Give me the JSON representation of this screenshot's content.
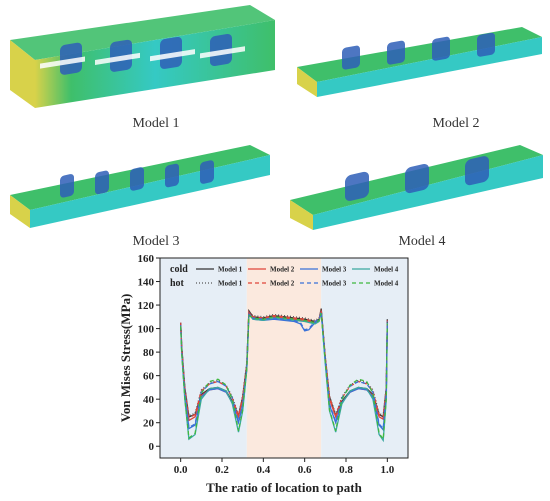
{
  "models": [
    {
      "label": "Model 1"
    },
    {
      "label": "Model 2"
    },
    {
      "label": "Model 3"
    },
    {
      "label": "Model 4"
    }
  ],
  "colors": {
    "region_outer": "#e6eef6",
    "region_middle": "#fbe9de",
    "mesh_green": "#3fbf6a",
    "mesh_blue": "#2f5fb8",
    "mesh_yellow": "#d8d24a",
    "mesh_cyan": "#35c9c4"
  },
  "chart_data": {
    "type": "line",
    "title": "",
    "xlabel": "The ratio of location to path",
    "ylabel": "Von Mises Stress(MPa)",
    "xlim": [
      -0.1,
      1.1
    ],
    "ylim": [
      -10,
      160
    ],
    "xticks": [
      "0.0",
      "0.2",
      "0.4",
      "0.6",
      "0.8",
      "1.0"
    ],
    "yticks": [
      "0",
      "20",
      "40",
      "60",
      "80",
      "100",
      "120",
      "140",
      "160"
    ],
    "regions": [
      {
        "x0": -0.1,
        "x1": 0.32,
        "color": "#e6eef6"
      },
      {
        "x0": 0.32,
        "x1": 0.68,
        "color": "#fbe9de"
      },
      {
        "x0": 0.68,
        "x1": 1.1,
        "color": "#e6eef6"
      }
    ],
    "legend_groups": [
      "cold",
      "hot"
    ],
    "series": [
      {
        "name": "Model 1",
        "group": "cold",
        "color": "#333333",
        "dash": "",
        "x": [
          0.0,
          0.005,
          0.02,
          0.04,
          0.07,
          0.1,
          0.14,
          0.18,
          0.22,
          0.25,
          0.28,
          0.3,
          0.32,
          0.33,
          0.35,
          0.4,
          0.45,
          0.5,
          0.55,
          0.6,
          0.65,
          0.67,
          0.68,
          0.7,
          0.72,
          0.75,
          0.78,
          0.82,
          0.86,
          0.9,
          0.93,
          0.96,
          0.98,
          0.995,
          1.0
        ],
        "y": [
          105,
          85,
          50,
          25,
          27,
          44,
          49,
          50,
          47,
          38,
          26,
          42,
          70,
          115,
          110,
          109,
          111,
          110,
          109,
          108,
          106,
          108,
          117,
          75,
          42,
          26,
          38,
          47,
          50,
          49,
          44,
          27,
          25,
          50,
          108
        ]
      },
      {
        "name": "Model 2",
        "group": "cold",
        "color": "#e0463a",
        "dash": "",
        "x": [
          0.0,
          0.005,
          0.02,
          0.04,
          0.07,
          0.1,
          0.14,
          0.18,
          0.22,
          0.25,
          0.28,
          0.3,
          0.32,
          0.33,
          0.35,
          0.4,
          0.45,
          0.5,
          0.55,
          0.6,
          0.65,
          0.67,
          0.68,
          0.7,
          0.72,
          0.75,
          0.78,
          0.82,
          0.86,
          0.9,
          0.93,
          0.96,
          0.98,
          0.995,
          1.0
        ],
        "y": [
          105,
          84,
          48,
          22,
          25,
          43,
          48,
          49,
          46,
          37,
          25,
          40,
          68,
          114,
          109,
          108,
          110,
          109,
          108,
          107,
          105,
          107,
          116,
          74,
          40,
          25,
          37,
          46,
          49,
          48,
          43,
          25,
          23,
          48,
          107
        ]
      },
      {
        "name": "Model 3",
        "group": "cold",
        "color": "#3a72d8",
        "dash": "",
        "x": [
          0.0,
          0.005,
          0.02,
          0.04,
          0.07,
          0.1,
          0.14,
          0.18,
          0.22,
          0.25,
          0.28,
          0.3,
          0.32,
          0.33,
          0.35,
          0.4,
          0.45,
          0.5,
          0.55,
          0.58,
          0.6,
          0.62,
          0.65,
          0.67,
          0.68,
          0.7,
          0.72,
          0.75,
          0.78,
          0.82,
          0.86,
          0.9,
          0.93,
          0.96,
          0.98,
          0.995,
          1.0
        ],
        "y": [
          104,
          82,
          45,
          15,
          18,
          42,
          48,
          49,
          46,
          37,
          20,
          35,
          66,
          113,
          108,
          107,
          108,
          107,
          106,
          104,
          98,
          99,
          105,
          107,
          115,
          72,
          35,
          20,
          37,
          46,
          49,
          48,
          42,
          18,
          14,
          45,
          106
        ]
      },
      {
        "name": "Model 4",
        "group": "cold",
        "color": "#3aa8a0",
        "dash": "",
        "x": [
          0.0,
          0.005,
          0.02,
          0.04,
          0.07,
          0.1,
          0.14,
          0.18,
          0.22,
          0.25,
          0.28,
          0.3,
          0.32,
          0.33,
          0.35,
          0.4,
          0.45,
          0.5,
          0.55,
          0.6,
          0.65,
          0.67,
          0.68,
          0.7,
          0.72,
          0.75,
          0.78,
          0.82,
          0.86,
          0.9,
          0.93,
          0.96,
          0.98,
          0.995,
          1.0
        ],
        "y": [
          103,
          80,
          40,
          6,
          10,
          40,
          49,
          50,
          47,
          36,
          12,
          30,
          65,
          112,
          108,
          107,
          109,
          108,
          107,
          106,
          104,
          106,
          114,
          70,
          30,
          12,
          36,
          47,
          50,
          49,
          40,
          10,
          5,
          40,
          105
        ]
      },
      {
        "name": "Model 1",
        "group": "hot",
        "color": "#555555",
        "dash": "1,2",
        "x": [
          0.0,
          0.005,
          0.02,
          0.04,
          0.07,
          0.1,
          0.14,
          0.18,
          0.22,
          0.25,
          0.28,
          0.3,
          0.32,
          0.33,
          0.35,
          0.4,
          0.45,
          0.5,
          0.55,
          0.6,
          0.65,
          0.67,
          0.68,
          0.7,
          0.72,
          0.75,
          0.78,
          0.82,
          0.86,
          0.9,
          0.93,
          0.96,
          0.98,
          0.995,
          1.0
        ],
        "y": [
          104,
          84,
          50,
          26,
          28,
          48,
          54,
          56,
          52,
          42,
          27,
          43,
          71,
          114,
          111,
          110,
          112,
          111,
          110,
          109,
          107,
          109,
          116,
          76,
          43,
          27,
          42,
          52,
          56,
          54,
          48,
          28,
          26,
          50,
          107
        ]
      },
      {
        "name": "Model 2",
        "group": "hot",
        "color": "#e0463a",
        "dash": "4,3",
        "x": [
          0.0,
          0.005,
          0.02,
          0.04,
          0.07,
          0.1,
          0.14,
          0.18,
          0.22,
          0.25,
          0.28,
          0.3,
          0.32,
          0.33,
          0.35,
          0.4,
          0.45,
          0.5,
          0.55,
          0.6,
          0.65,
          0.67,
          0.68,
          0.7,
          0.72,
          0.75,
          0.78,
          0.82,
          0.86,
          0.9,
          0.93,
          0.96,
          0.98,
          0.995,
          1.0
        ],
        "y": [
          104,
          83,
          49,
          24,
          27,
          47,
          53,
          55,
          51,
          41,
          26,
          42,
          70,
          113,
          110,
          109,
          111,
          110,
          109,
          108,
          106,
          108,
          115,
          75,
          42,
          26,
          41,
          51,
          55,
          53,
          47,
          27,
          24,
          49,
          106
        ]
      },
      {
        "name": "Model 3",
        "group": "hot",
        "color": "#3a72d8",
        "dash": "4,3",
        "x": [
          0.0,
          0.005,
          0.02,
          0.04,
          0.07,
          0.1,
          0.14,
          0.18,
          0.22,
          0.25,
          0.28,
          0.3,
          0.32,
          0.33,
          0.35,
          0.4,
          0.45,
          0.5,
          0.55,
          0.58,
          0.6,
          0.62,
          0.65,
          0.67,
          0.68,
          0.7,
          0.72,
          0.75,
          0.78,
          0.82,
          0.86,
          0.9,
          0.93,
          0.96,
          0.98,
          0.995,
          1.0
        ],
        "y": [
          103,
          81,
          46,
          16,
          19,
          46,
          53,
          55,
          51,
          41,
          21,
          36,
          67,
          112,
          109,
          108,
          109,
          108,
          107,
          105,
          99,
          100,
          106,
          108,
          114,
          73,
          36,
          21,
          41,
          51,
          55,
          53,
          46,
          19,
          15,
          46,
          105
        ]
      },
      {
        "name": "Model 4",
        "group": "hot",
        "color": "#3fb83f",
        "dash": "4,3",
        "x": [
          0.0,
          0.005,
          0.02,
          0.04,
          0.07,
          0.1,
          0.14,
          0.18,
          0.22,
          0.25,
          0.28,
          0.3,
          0.32,
          0.33,
          0.35,
          0.4,
          0.45,
          0.5,
          0.55,
          0.6,
          0.65,
          0.67,
          0.68,
          0.7,
          0.72,
          0.75,
          0.78,
          0.82,
          0.86,
          0.9,
          0.93,
          0.96,
          0.98,
          0.995,
          1.0
        ],
        "y": [
          102,
          79,
          41,
          7,
          11,
          45,
          55,
          57,
          52,
          40,
          13,
          31,
          66,
          111,
          109,
          108,
          110,
          109,
          108,
          107,
          105,
          107,
          113,
          71,
          31,
          13,
          40,
          52,
          57,
          55,
          45,
          11,
          6,
          41,
          104
        ]
      }
    ]
  }
}
